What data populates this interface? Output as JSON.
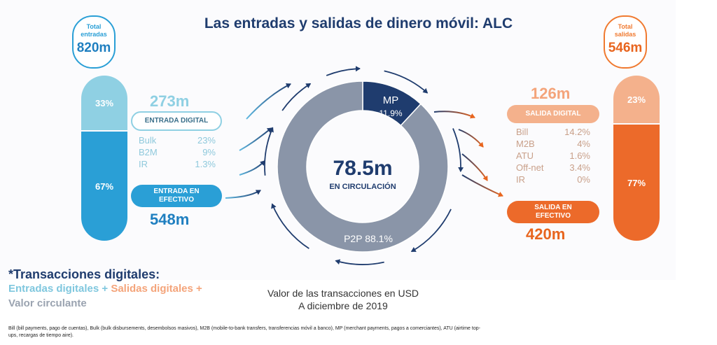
{
  "title": "Las entradas y salidas de dinero móvil: ALC",
  "inflows": {
    "total_label_line1": "Total",
    "total_label_line2": "entradas",
    "total_value": "820m",
    "digital_share": "33%",
    "cash_share": "67%",
    "digital_amount": "273m",
    "digital_label": "ENTRADA DIGITAL",
    "breakdown": [
      {
        "name": "Bulk",
        "value": "23%"
      },
      {
        "name": "B2M",
        "value": "9%"
      },
      {
        "name": "IR",
        "value": "1.3%"
      }
    ],
    "cash_label_line1": "ENTRADA EN",
    "cash_label_line2": "EFECTIVO",
    "cash_amount": "548m"
  },
  "outflows": {
    "total_label_line1": "Total",
    "total_label_line2": "salidas",
    "total_value": "546m",
    "digital_share": "23%",
    "cash_share": "77%",
    "digital_amount": "126m",
    "digital_label": "SALIDA DIGITAL",
    "breakdown": [
      {
        "name": "Bill",
        "value": "14.2%"
      },
      {
        "name": "M2B",
        "value": "4%"
      },
      {
        "name": "ATU",
        "value": "1.6%"
      },
      {
        "name": "Off-net",
        "value": "3.4%"
      },
      {
        "name": "IR",
        "value": "0%"
      }
    ],
    "cash_label_line1": "SALIDA EN",
    "cash_label_line2": "EFECTIVO",
    "cash_amount": "420m"
  },
  "circulation": {
    "value": "78.5m",
    "label": "EN CIRCULACIÓN",
    "mp_label": "MP",
    "mp_value": "11.9%",
    "mp_fraction": 0.119,
    "p2p_text": "P2P 88.1%"
  },
  "notes": {
    "title": "*Transacciones digitales:",
    "line1_part1": "Entradas digitales + ",
    "line1_part2": "Salidas digitales +",
    "line2": "Valor circulante",
    "value_line1": "Valor de las transacciones en USD",
    "value_line2": "A diciembre de 2019",
    "footnote": "Bill (bill payments, pago de cuentas), Bulk (bulk disbursements, desembolsos masivos), M2B (mobile-to-bank transfers, transferencias móvil a banco), MP (merchant payments, pagos a comerciantes), ATU (airtime top-ups, recargas de tiempo aire)."
  },
  "colors": {
    "navy": "#1f3c6e",
    "blue": "#2a9fd6",
    "light_blue": "#8fd0e3",
    "orange": "#ec6a2a",
    "light_orange": "#f4b18c",
    "ring_gray": "#8a95a8"
  }
}
